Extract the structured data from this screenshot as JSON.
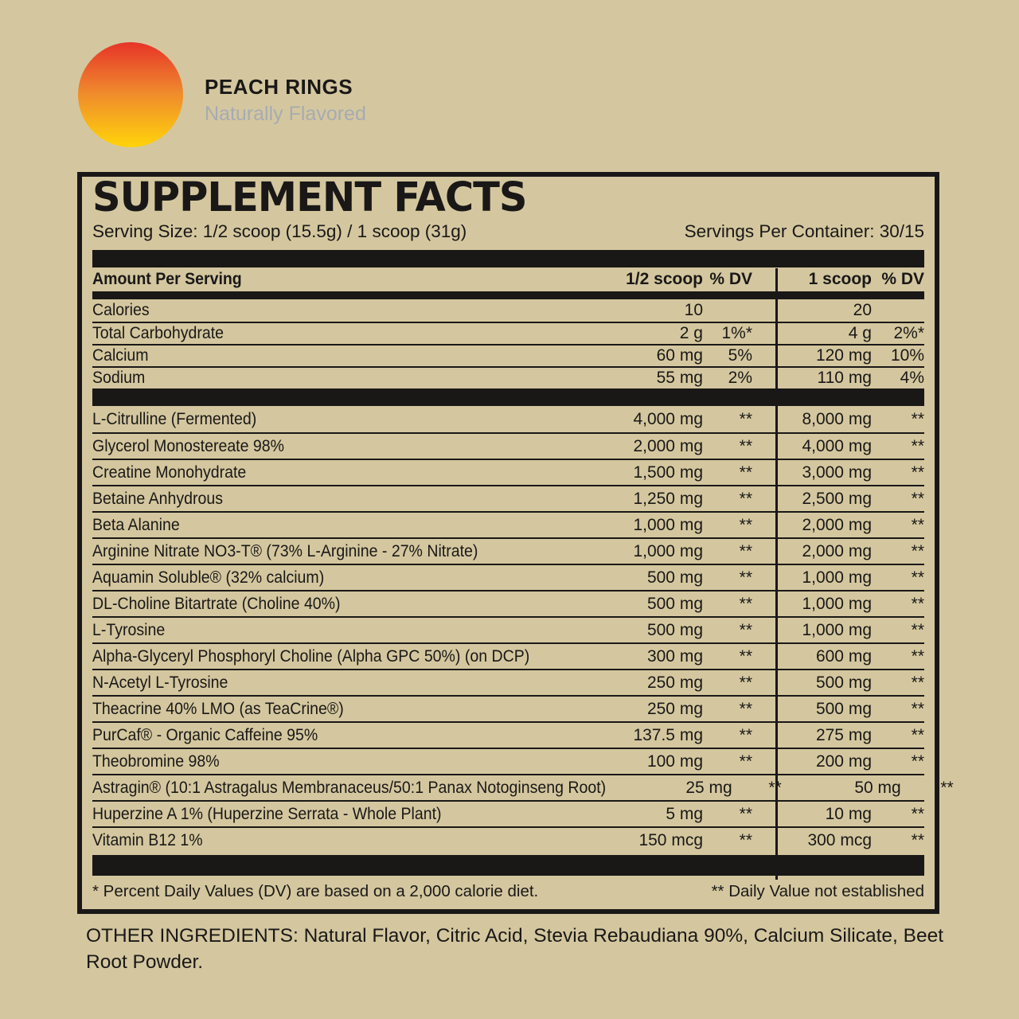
{
  "colors": {
    "background": "#d4c79f",
    "ink": "#1a1817",
    "tagline": "#a7abb2",
    "badge_top": "#e63428",
    "badge_mid": "#ef8a2d",
    "badge_bottom": "#ffd40a"
  },
  "brand": {
    "flavor": "PEACH RINGS",
    "tagline": "Naturally Flavored",
    "badge_icon": "gradient-sun-circle"
  },
  "facts": {
    "title": "SUPPLEMENT FACTS",
    "serving_size": "Serving Size: 1/2 scoop (15.5g) / 1 scoop (31g)",
    "servings_per_container": "Servings Per Container: 30/15",
    "columns": {
      "name": "Amount Per Serving",
      "amt_half": "1/2 scoop",
      "dv_half": "% DV",
      "amt_full": "1 scoop",
      "dv_full": "% DV"
    },
    "nutrients": [
      {
        "name": "Calories",
        "amt1": "10",
        "dv1": "",
        "amt2": "20",
        "dv2": ""
      },
      {
        "name": "Total Carbohydrate",
        "amt1": "2 g",
        "dv1": "1%*",
        "amt2": "4 g",
        "dv2": "2%*"
      },
      {
        "name": "Calcium",
        "amt1": "60 mg",
        "dv1": "5%",
        "amt2": "120 mg",
        "dv2": "10%"
      },
      {
        "name": "Sodium",
        "amt1": "55 mg",
        "dv1": "2%",
        "amt2": "110 mg",
        "dv2": "4%"
      }
    ],
    "ingredients": [
      {
        "name": "L-Citrulline (Fermented)",
        "amt1": "4,000 mg",
        "dv1": "**",
        "amt2": "8,000 mg",
        "dv2": "**"
      },
      {
        "name": "Glycerol Monostereate 98%",
        "amt1": "2,000 mg",
        "dv1": "**",
        "amt2": "4,000 mg",
        "dv2": "**"
      },
      {
        "name": "Creatine Monohydrate",
        "amt1": "1,500 mg",
        "dv1": "**",
        "amt2": "3,000 mg",
        "dv2": "**"
      },
      {
        "name": "Betaine Anhydrous",
        "amt1": "1,250 mg",
        "dv1": "**",
        "amt2": "2,500 mg",
        "dv2": "**"
      },
      {
        "name": "Beta Alanine",
        "amt1": "1,000 mg",
        "dv1": "**",
        "amt2": "2,000 mg",
        "dv2": "**"
      },
      {
        "name": "Arginine Nitrate NO3-T® (73% L-Arginine - 27% Nitrate)",
        "amt1": "1,000 mg",
        "dv1": "**",
        "amt2": "2,000 mg",
        "dv2": "**"
      },
      {
        "name": "Aquamin Soluble® (32% calcium)",
        "amt1": "500 mg",
        "dv1": "**",
        "amt2": "1,000 mg",
        "dv2": "**"
      },
      {
        "name": "DL-Choline Bitartrate (Choline 40%)",
        "amt1": "500 mg",
        "dv1": "**",
        "amt2": "1,000 mg",
        "dv2": "**"
      },
      {
        "name": "L-Tyrosine",
        "amt1": "500 mg",
        "dv1": "**",
        "amt2": "1,000 mg",
        "dv2": "**"
      },
      {
        "name": "Alpha-Glyceryl Phosphoryl Choline (Alpha GPC 50%) (on DCP)",
        "amt1": "300 mg",
        "dv1": "**",
        "amt2": "600 mg",
        "dv2": "**"
      },
      {
        "name": "N-Acetyl L-Tyrosine",
        "amt1": "250 mg",
        "dv1": "**",
        "amt2": "500 mg",
        "dv2": "**"
      },
      {
        "name": "Theacrine 40% LMO (as TeaCrine®)",
        "amt1": "250 mg",
        "dv1": "**",
        "amt2": "500 mg",
        "dv2": "**"
      },
      {
        "name": "PurCaf® - Organic Caffeine 95%",
        "amt1": "137.5 mg",
        "dv1": "**",
        "amt2": "275 mg",
        "dv2": "**"
      },
      {
        "name": "Theobromine 98%",
        "amt1": "100 mg",
        "dv1": "**",
        "amt2": "200 mg",
        "dv2": "**"
      },
      {
        "name": "Astragin® (10:1 Astragalus Membranaceus/50:1 Panax Notoginseng Root)",
        "amt1": "25 mg",
        "dv1": "**",
        "amt2": "50 mg",
        "dv2": "**"
      },
      {
        "name": "Huperzine A 1% (Huperzine Serrata - Whole Plant)",
        "amt1": "5 mg",
        "dv1": "**",
        "amt2": "10 mg",
        "dv2": "**"
      },
      {
        "name": "Vitamin B12 1%",
        "amt1": "150 mcg",
        "dv1": "**",
        "amt2": "300 mcg",
        "dv2": "**"
      }
    ],
    "footnote_left": "* Percent Daily Values (DV) are based on a 2,000 calorie diet.",
    "footnote_right": "** Daily Value not established"
  },
  "other_ingredients": "OTHER INGREDIENTS: Natural Flavor, Citric Acid, Stevia Rebaudiana 90%, Calcium Silicate, Beet Root Powder."
}
